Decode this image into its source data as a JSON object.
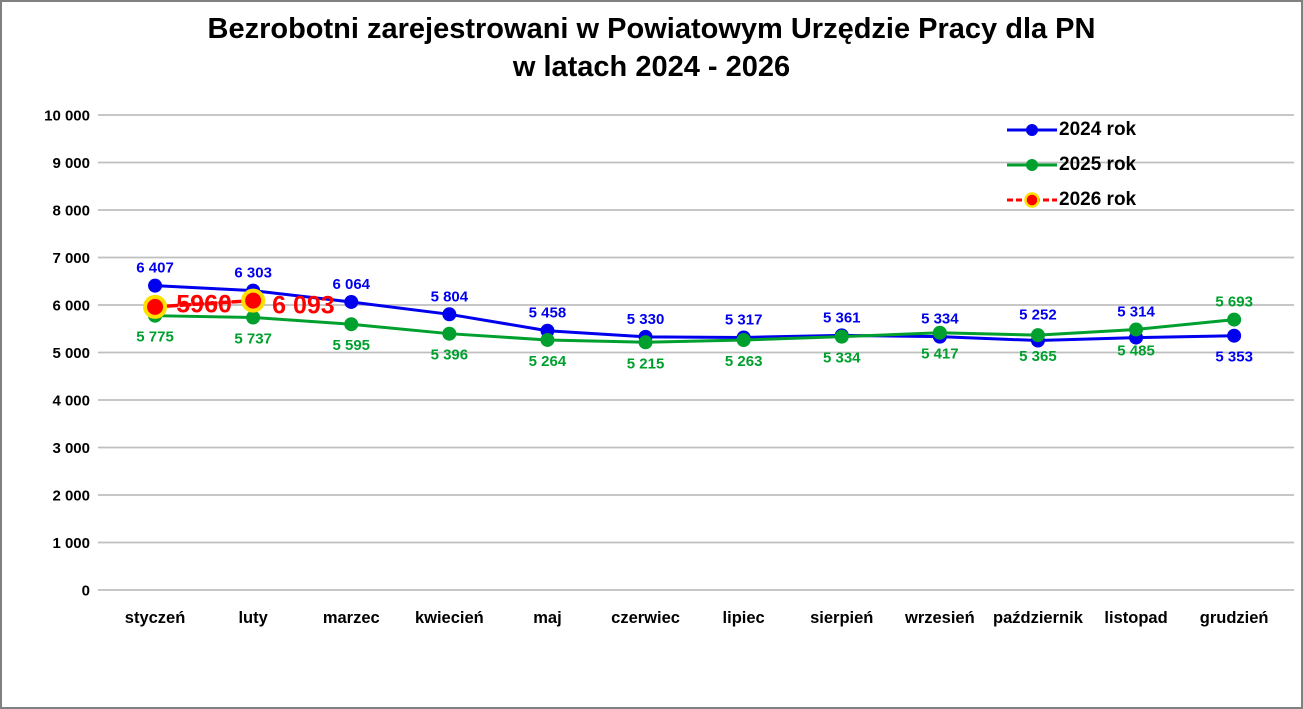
{
  "chart_data": {
    "type": "line",
    "title": "Bezrobotni zarejestrowani w Powiatowym Urzędzie Pracy dla PN w latach 2024 - 2026",
    "title_lines": [
      "Bezrobotni zarejestrowani w Powiatowym Urzędzie Pracy dla PN",
      "w latach 2024 - 2026"
    ],
    "categories": [
      "styczeń",
      "luty",
      "marzec",
      "kwiecień",
      "maj",
      "czerwiec",
      "lipiec",
      "sierpień",
      "wrzesień",
      "październik",
      "listopad",
      "grudzień"
    ],
    "ylim": [
      0,
      10000
    ],
    "ytick_step": 1000,
    "ytick_labels": [
      "0",
      "1 000",
      "2 000",
      "3 000",
      "4 000",
      "5 000",
      "6 000",
      "7 000",
      "8 000",
      "9 000",
      "10 000"
    ],
    "grid": "horizontal",
    "gridline_color": "#BFBFBF",
    "border_color": "#808080",
    "legend_position": "top-right",
    "series": [
      {
        "name": "2024 rok",
        "color": "#0000EE",
        "line_style": "solid",
        "marker": {
          "shape": "circle",
          "size": 7
        },
        "values": [
          6407,
          6303,
          6064,
          5804,
          5458,
          5330,
          5317,
          5361,
          5334,
          5252,
          5314,
          5353
        ],
        "labels": [
          "6 407",
          "6 303",
          "6 064",
          "5 804",
          "5 458",
          "5 330",
          "5 317",
          "5 361",
          "5 334",
          "5 252",
          "5 314",
          "5 353"
        ],
        "label_default": "above",
        "label_overrides": {
          "11": "below"
        }
      },
      {
        "name": "2025 rok",
        "color": "#00A02E",
        "line_style": "solid",
        "marker": {
          "shape": "circle",
          "size": 7
        },
        "values": [
          5775,
          5737,
          5595,
          5396,
          5264,
          5215,
          5263,
          5334,
          5417,
          5365,
          5485,
          5693
        ],
        "labels": [
          "5 775",
          "5 737",
          "5 595",
          "5 396",
          "5 264",
          "5 215",
          "5 263",
          "5 334",
          "5 417",
          "5 365",
          "5 485",
          "5 693"
        ],
        "label_default": "below",
        "label_overrides": {
          "11": "above"
        }
      },
      {
        "name": "2026 rok",
        "color": "#FF0000",
        "line_style": "dashed",
        "marker": {
          "shape": "circle",
          "size": 10,
          "ring_color": "#FFDF00"
        },
        "values": [
          5960,
          6093,
          null,
          null,
          null,
          null,
          null,
          null,
          null,
          null,
          null,
          null
        ],
        "labels": [
          "5960",
          "6 093"
        ],
        "label_default": "above",
        "label_overrides": {
          "0": "between",
          "1": "right"
        },
        "label_font_size": 25
      }
    ]
  }
}
